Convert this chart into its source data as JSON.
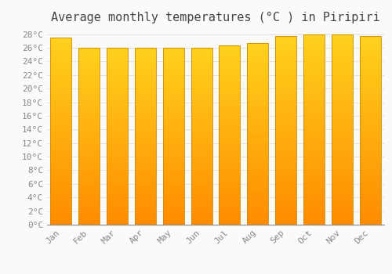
{
  "title": "Average monthly temperatures (°C ) in Piripiri",
  "months": [
    "Jan",
    "Feb",
    "Mar",
    "Apr",
    "May",
    "Jun",
    "Jul",
    "Aug",
    "Sep",
    "Oct",
    "Nov",
    "Dec"
  ],
  "values": [
    27.5,
    26.0,
    26.0,
    26.0,
    26.0,
    26.0,
    26.3,
    26.7,
    27.7,
    28.0,
    28.0,
    27.7
  ],
  "ylim": [
    0,
    29
  ],
  "ytick_vals": [
    0,
    2,
    4,
    6,
    8,
    10,
    12,
    14,
    16,
    18,
    20,
    22,
    24,
    26,
    28
  ],
  "bar_color_main": "#FFA500",
  "bar_color_highlight": "#FFD050",
  "bar_edge_color": "#CC8800",
  "background_color": "#FAFAFA",
  "grid_color": "#DDDDDD",
  "title_fontsize": 11,
  "tick_fontsize": 8,
  "tick_label_color": "#888888",
  "title_color": "#444444"
}
